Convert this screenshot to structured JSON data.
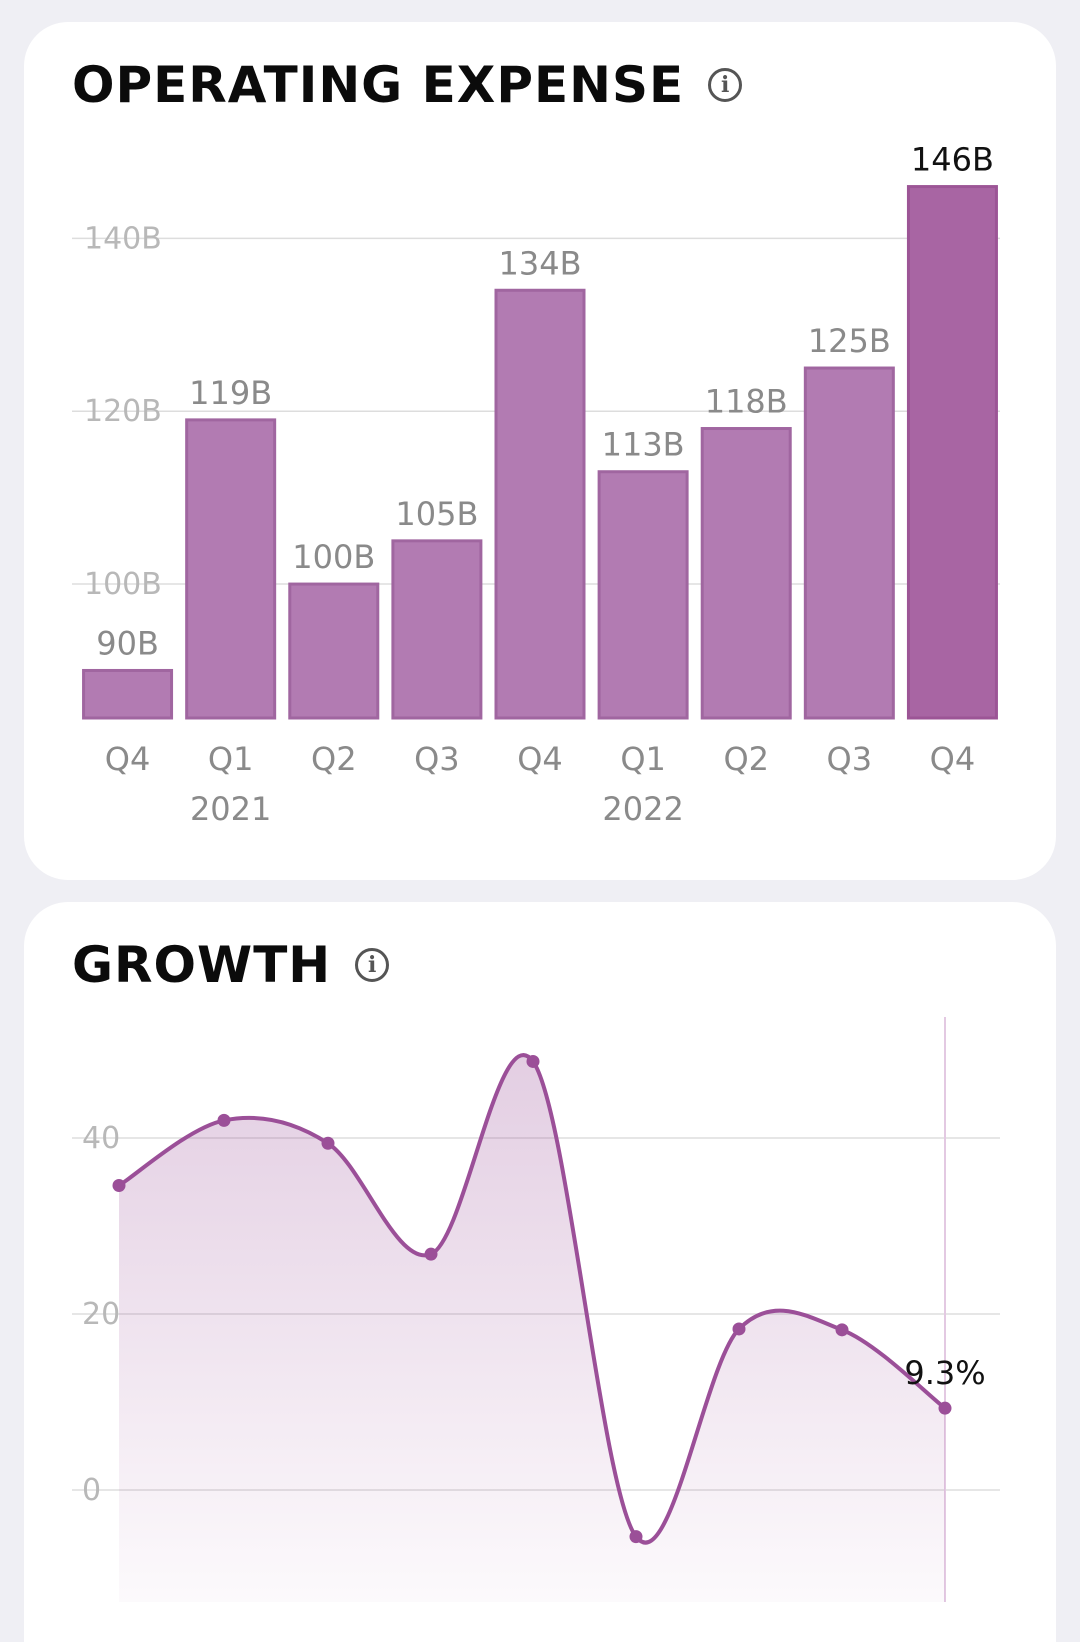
{
  "opex": {
    "title": "OPERATING EXPENSE",
    "info_icon": "info-icon"
  },
  "growth": {
    "title": "GROWTH",
    "info_icon": "info-icon"
  },
  "colors": {
    "bar": "#b27bb2",
    "bar_highlight": "#a865a3",
    "line": "#9b4f98",
    "grid": "#dddddd",
    "tick": "#b8b8b8",
    "label": "#8a8a8a"
  },
  "chart_data": [
    {
      "type": "bar",
      "title": "OPERATING EXPENSE",
      "categories": [
        "Q4",
        "Q1",
        "Q2",
        "Q3",
        "Q4",
        "Q1",
        "Q2",
        "Q3",
        "Q4"
      ],
      "year_labels": [
        {
          "index": 1,
          "label": "2021"
        },
        {
          "index": 5,
          "label": "2022"
        }
      ],
      "values": [
        90,
        119,
        100,
        105,
        134,
        113,
        118,
        125,
        146
      ],
      "value_labels": [
        "90B",
        "119B",
        "100B",
        "105B",
        "134B",
        "113B",
        "118B",
        "125B",
        "146B"
      ],
      "highlight_index": 8,
      "yticks": [
        100,
        120,
        140
      ],
      "ytick_labels": [
        "100B",
        "120B",
        "140B"
      ],
      "ylim": [
        84.5,
        150
      ],
      "grid": true
    },
    {
      "type": "area",
      "title": "GROWTH",
      "x": [
        0,
        1,
        2,
        3,
        4,
        5,
        6,
        7,
        8
      ],
      "values": [
        34.6,
        42,
        39.4,
        26.8,
        48.7,
        -5.3,
        18.3,
        18.2,
        9.3
      ],
      "last_label": "9.3%",
      "yticks": [
        0,
        20,
        40
      ],
      "ytick_labels": [
        "0",
        "20",
        "40"
      ],
      "ylim": [
        -10,
        54
      ],
      "grid": true
    }
  ]
}
